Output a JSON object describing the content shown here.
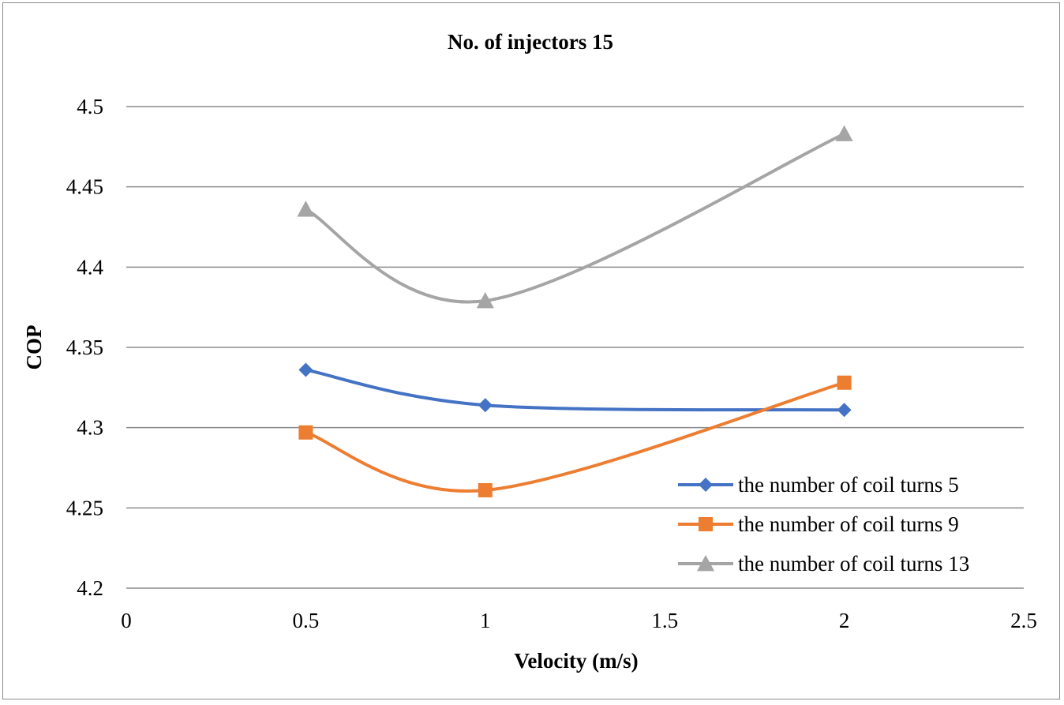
{
  "chart_data": {
    "type": "line",
    "title": "No. of injectors 15",
    "xlabel": "Velocity (m/s)",
    "ylabel": "COP",
    "xlim": [
      0,
      2.5
    ],
    "ylim": [
      4.2,
      4.5
    ],
    "x_ticks": [
      "0",
      "0.5",
      "1",
      "1.5",
      "2",
      "2.5"
    ],
    "y_ticks": [
      "4.2",
      "4.25",
      "4.3",
      "4.35",
      "4.4",
      "4.45",
      "4.5"
    ],
    "grid": "horizontal",
    "smooth": true,
    "legend_position": "bottom-right",
    "series": [
      {
        "name": "the number of coil turns 5",
        "color": "#4472C4",
        "marker": "diamond",
        "x": [
          0.5,
          1,
          2
        ],
        "y": [
          4.336,
          4.314,
          4.311
        ]
      },
      {
        "name": "the number of coil turns 9",
        "color": "#ED7D31",
        "marker": "square",
        "x": [
          0.5,
          1,
          2
        ],
        "y": [
          4.297,
          4.261,
          4.328
        ]
      },
      {
        "name": "the number of coil turns 13",
        "color": "#A5A5A5",
        "marker": "triangle",
        "x": [
          0.5,
          1,
          2
        ],
        "y": [
          4.436,
          4.379,
          4.483
        ]
      }
    ]
  }
}
